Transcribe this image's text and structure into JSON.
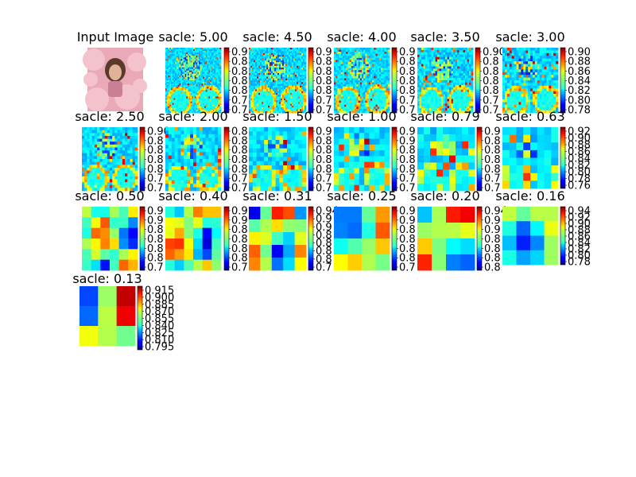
{
  "chart_data": [
    {
      "type": "image",
      "title": "Input Image"
    },
    {
      "type": "heatmap",
      "title": "sacle: 5.00",
      "colorbar_ticks": [
        "0.9",
        "0.8",
        "0.8",
        "0.8",
        "0.8",
        "0.7",
        "0.7"
      ]
    },
    {
      "type": "heatmap",
      "title": "sacle: 4.50",
      "colorbar_ticks": [
        "0.9",
        "0.8",
        "0.8",
        "0.8",
        "0.8",
        "0.7",
        "0.7"
      ]
    },
    {
      "type": "heatmap",
      "title": "sacle: 4.00",
      "colorbar_ticks": [
        "0.9",
        "0.8",
        "0.8",
        "0.8",
        "0.8",
        "0.7",
        "0.7"
      ]
    },
    {
      "type": "heatmap",
      "title": "sacle: 3.50",
      "colorbar_ticks": [
        "0.90",
        "0.8",
        "0.8",
        "0.8",
        "0.8",
        "0.7",
        "0.7"
      ]
    },
    {
      "type": "heatmap",
      "title": "sacle: 3.00",
      "colorbar_ticks": [
        "0.90",
        "0.88",
        "0.86",
        "0.84",
        "0.82",
        "0.80",
        "0.78"
      ]
    },
    {
      "type": "heatmap",
      "title": "sacle: 2.50",
      "colorbar_ticks": [
        "0.90",
        "0.8",
        "0.8",
        "0.8",
        "0.8",
        "0.7",
        "0.7"
      ]
    },
    {
      "type": "heatmap",
      "title": "sacle: 2.00",
      "colorbar_ticks": [
        "0.8",
        "0.8",
        "0.8",
        "0.8",
        "0.8",
        "0.7",
        "0.7"
      ]
    },
    {
      "type": "heatmap",
      "title": "sacle: 1.50",
      "colorbar_ticks": [
        "0.9",
        "0.8",
        "0.8",
        "0.8",
        "0.8",
        "0.7",
        "0.7"
      ]
    },
    {
      "type": "heatmap",
      "title": "sacle: 1.00",
      "colorbar_ticks": [
        "0.9",
        "0.9",
        "0.8",
        "0.8",
        "0.8",
        "0.7",
        "0.7"
      ]
    },
    {
      "type": "heatmap",
      "title": "sacle: 0.79",
      "colorbar_ticks": [
        "0.9",
        "0.8",
        "0.8",
        "0.8",
        "0.8",
        "0.7",
        "0.7"
      ]
    },
    {
      "type": "heatmap",
      "title": "sacle: 0.63",
      "colorbar_ticks": [
        "0.92",
        "0.90",
        "0.88",
        "0.86",
        "0.84",
        "0.82",
        "0.80",
        "0.78",
        "0.76"
      ]
    },
    {
      "type": "heatmap",
      "title": "sacle: 0.50",
      "colorbar_ticks": [
        "0.9",
        "0.9",
        "0.8",
        "0.8",
        "0.8",
        "0.8",
        "0.7"
      ]
    },
    {
      "type": "heatmap",
      "title": "sacle: 0.40",
      "colorbar_ticks": [
        "0.9",
        "0.9",
        "0.8",
        "0.8",
        "0.8",
        "0.8",
        "0.7"
      ]
    },
    {
      "type": "heatmap",
      "title": "sacle: 0.31",
      "colorbar_ticks": [
        "0.94",
        "0.9",
        "0.9",
        "0.8",
        "0.8",
        "0.8",
        "0.8",
        "0.7"
      ]
    },
    {
      "type": "heatmap",
      "title": "sacle: 0.25",
      "colorbar_ticks": [
        "0.9",
        "0.9",
        "0.8",
        "0.8",
        "0.8",
        "0.8",
        "0.7"
      ]
    },
    {
      "type": "heatmap",
      "title": "sacle: 0.20",
      "colorbar_ticks": [
        "0.94",
        "0.9",
        "0.9",
        "0.8",
        "0.8",
        "0.8",
        "0.8"
      ]
    },
    {
      "type": "heatmap",
      "title": "sacle: 0.16",
      "colorbar_ticks": [
        "0.94",
        "0.92",
        "0.90",
        "0.88",
        "0.86",
        "0.84",
        "0.82",
        "0.80",
        "0.78"
      ]
    },
    {
      "type": "heatmap",
      "title": "sacle: 0.13",
      "colorbar_ticks": [
        "0.915",
        "0.900",
        "0.885",
        "0.870",
        "0.855",
        "0.840",
        "0.825",
        "0.810",
        "0.795"
      ]
    }
  ],
  "colormap": "jet"
}
